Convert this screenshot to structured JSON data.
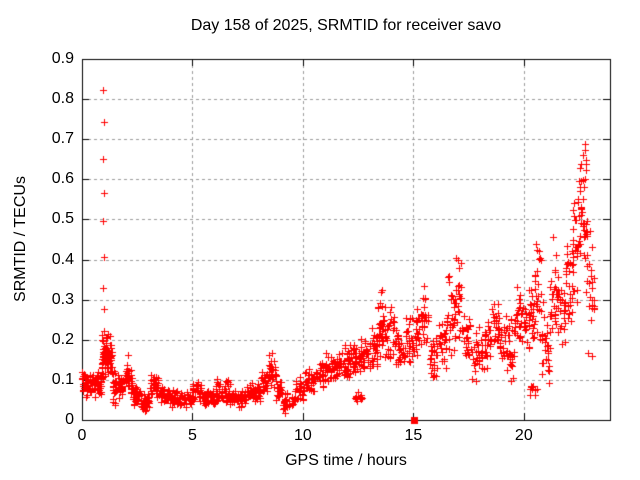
{
  "chart_data": {
    "type": "scatter",
    "title": "Day 158 of 2025, SRMTID for receiver savo",
    "xlabel": "GPS time / hours",
    "ylabel": "SRMTID / TECUs",
    "xlim": [
      0,
      23.9
    ],
    "ylim": [
      0,
      0.9
    ],
    "xticks": [
      {
        "v": 0,
        "label": "0"
      },
      {
        "v": 5,
        "label": "5"
      },
      {
        "v": 10,
        "label": "10"
      },
      {
        "v": 15,
        "label": "15"
      },
      {
        "v": 20,
        "label": "20"
      }
    ],
    "yticks": [
      {
        "v": 0.0,
        "label": "0"
      },
      {
        "v": 0.1,
        "label": "0.1"
      },
      {
        "v": 0.2,
        "label": "0.2"
      },
      {
        "v": 0.3,
        "label": "0.3"
      },
      {
        "v": 0.4,
        "label": "0.4"
      },
      {
        "v": 0.5,
        "label": "0.5"
      },
      {
        "v": 0.6,
        "label": "0.6"
      },
      {
        "v": 0.7,
        "label": "0.7"
      },
      {
        "v": 0.8,
        "label": "0.8"
      },
      {
        "v": 0.9,
        "label": "0.9"
      }
    ],
    "grid": true,
    "legend": "none",
    "marker": "plus",
    "marker_color": "#ff0000",
    "grid_color": "#9c9c9c",
    "frame_color": "#000000",
    "background": "#ffffff",
    "zero_marker": {
      "x": 15.05,
      "y": 0.0,
      "shape": "filled-square"
    },
    "outlier_points": [
      [
        0.97,
        0.822
      ],
      [
        0.98,
        0.743
      ],
      [
        0.97,
        0.651
      ],
      [
        0.98,
        0.567
      ],
      [
        0.97,
        0.497
      ],
      [
        0.98,
        0.407
      ],
      [
        0.97,
        0.328
      ],
      [
        0.98,
        0.276
      ],
      [
        2.08,
        0.163
      ],
      [
        8.62,
        0.168
      ],
      [
        13.52,
        0.318
      ],
      [
        13.56,
        0.325
      ],
      [
        15.5,
        0.335
      ],
      [
        16.95,
        0.405
      ],
      [
        17.02,
        0.398
      ],
      [
        20.55,
        0.44
      ],
      [
        20.6,
        0.425
      ],
      [
        21.3,
        0.455
      ],
      [
        22.55,
        0.628
      ],
      [
        22.6,
        0.638
      ],
      [
        22.7,
        0.66
      ],
      [
        22.75,
        0.688
      ],
      [
        22.78,
        0.672
      ],
      [
        22.82,
        0.648
      ],
      [
        23.0,
        0.47
      ]
    ],
    "density_bands": [
      [
        0.0,
        0.15,
        0.06,
        0.13,
        14
      ],
      [
        0.15,
        0.5,
        0.05,
        0.12,
        40
      ],
      [
        0.5,
        0.9,
        0.05,
        0.13,
        45
      ],
      [
        0.9,
        1.12,
        0.08,
        0.225,
        45
      ],
      [
        1.12,
        1.38,
        0.115,
        0.225,
        32
      ],
      [
        1.38,
        1.65,
        0.03,
        0.13,
        26
      ],
      [
        1.65,
        1.95,
        0.05,
        0.11,
        26
      ],
      [
        1.95,
        2.3,
        0.055,
        0.145,
        30
      ],
      [
        2.3,
        2.65,
        0.035,
        0.09,
        28
      ],
      [
        2.65,
        3.1,
        0.02,
        0.07,
        34
      ],
      [
        3.1,
        3.55,
        0.045,
        0.125,
        34
      ],
      [
        3.55,
        4.05,
        0.03,
        0.09,
        36
      ],
      [
        4.05,
        5.0,
        0.028,
        0.08,
        65
      ],
      [
        5.0,
        5.45,
        0.035,
        0.11,
        32
      ],
      [
        5.45,
        6.05,
        0.03,
        0.08,
        42
      ],
      [
        6.05,
        6.75,
        0.035,
        0.105,
        48
      ],
      [
        6.75,
        7.45,
        0.03,
        0.08,
        48
      ],
      [
        7.45,
        8.1,
        0.04,
        0.1,
        46
      ],
      [
        8.1,
        8.45,
        0.06,
        0.13,
        26
      ],
      [
        8.45,
        8.8,
        0.075,
        0.165,
        26
      ],
      [
        8.8,
        9.1,
        0.05,
        0.11,
        20
      ],
      [
        9.1,
        9.65,
        0.015,
        0.07,
        30
      ],
      [
        9.65,
        10.05,
        0.04,
        0.11,
        26
      ],
      [
        10.05,
        10.55,
        0.06,
        0.135,
        34
      ],
      [
        10.55,
        11.05,
        0.07,
        0.155,
        34
      ],
      [
        11.05,
        11.55,
        0.085,
        0.175,
        34
      ],
      [
        11.55,
        12.05,
        0.095,
        0.19,
        34
      ],
      [
        12.05,
        12.55,
        0.1,
        0.2,
        34
      ],
      [
        12.35,
        12.68,
        0.03,
        0.075,
        12
      ],
      [
        12.55,
        13.05,
        0.11,
        0.21,
        34
      ],
      [
        13.05,
        13.4,
        0.12,
        0.245,
        26
      ],
      [
        13.4,
        13.7,
        0.14,
        0.315,
        26
      ],
      [
        13.7,
        14.15,
        0.13,
        0.3,
        30
      ],
      [
        14.15,
        14.65,
        0.11,
        0.245,
        32
      ],
      [
        14.65,
        15.05,
        0.14,
        0.265,
        26
      ],
      [
        15.05,
        15.4,
        0.15,
        0.3,
        24
      ],
      [
        15.4,
        15.7,
        0.17,
        0.335,
        22
      ],
      [
        15.7,
        16.15,
        0.1,
        0.225,
        28
      ],
      [
        16.15,
        16.5,
        0.12,
        0.255,
        24
      ],
      [
        16.5,
        16.85,
        0.15,
        0.375,
        26
      ],
      [
        16.85,
        17.2,
        0.17,
        0.41,
        26
      ],
      [
        17.2,
        17.65,
        0.13,
        0.285,
        28
      ],
      [
        17.65,
        18.15,
        0.08,
        0.24,
        30
      ],
      [
        18.15,
        18.55,
        0.12,
        0.265,
        26
      ],
      [
        18.55,
        18.85,
        0.16,
        0.345,
        22
      ],
      [
        18.85,
        19.25,
        0.13,
        0.275,
        26
      ],
      [
        19.25,
        19.6,
        0.09,
        0.28,
        26
      ],
      [
        19.6,
        20.0,
        0.17,
        0.35,
        26
      ],
      [
        20.0,
        20.45,
        0.16,
        0.335,
        28
      ],
      [
        20.25,
        20.65,
        0.06,
        0.1,
        10
      ],
      [
        20.45,
        20.8,
        0.15,
        0.44,
        26
      ],
      [
        20.8,
        21.2,
        0.06,
        0.3,
        28
      ],
      [
        21.2,
        21.55,
        0.15,
        0.455,
        28
      ],
      [
        21.55,
        21.9,
        0.17,
        0.385,
        26
      ],
      [
        21.9,
        22.2,
        0.22,
        0.475,
        26
      ],
      [
        22.2,
        22.5,
        0.28,
        0.575,
        24
      ],
      [
        22.5,
        22.7,
        0.35,
        0.635,
        20
      ],
      [
        22.7,
        22.9,
        0.3,
        0.69,
        20
      ],
      [
        22.9,
        23.2,
        0.12,
        0.475,
        20
      ]
    ],
    "columns_per_hour": 30,
    "seed": 7
  }
}
